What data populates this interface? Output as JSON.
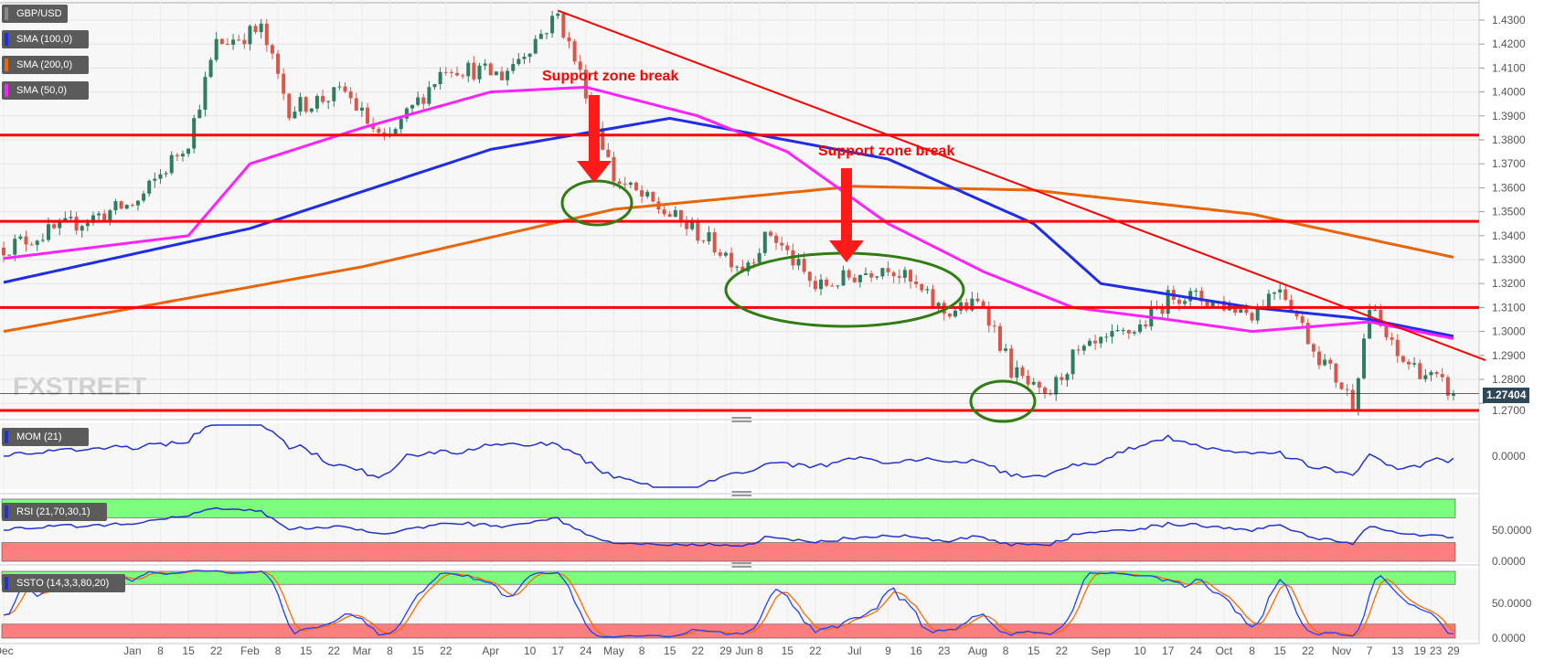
{
  "colors": {
    "up": "#2e7d5e",
    "down": "#d9574a",
    "sma100": "#1f2ee6",
    "sma200": "#e8650a",
    "sma50": "#ff22ff",
    "trend": "#ff0000",
    "support": "#ff0000",
    "ellipse": "#2f7d12",
    "mom": "#2233cc",
    "rsi": "#2233cc",
    "stoch_k": "#2040ff",
    "stoch_d": "#ff6a00",
    "overbought": "#7dfc7d",
    "oversold": "#fc7f7f"
  },
  "legend": {
    "symbol": "GBP/USD",
    "sma100": "SMA (100,0)",
    "sma200": "SMA (200,0)",
    "sma50": "SMA (50,0)",
    "mom": "MOM (21)",
    "rsi": "RSI (21,70,30,1)",
    "ssto": "SSTO (14,3,3,80,20)"
  },
  "watermark": "FXSTREET",
  "last_price": "1.27404",
  "annotations": [
    "Support zone break",
    "Support zone break"
  ],
  "chart_data": {
    "type": "candlestick",
    "title": "",
    "symbol": "GBP/USD",
    "ylim": [
      1.265,
      1.437
    ],
    "yticks": [
      "1.4300",
      "1.4200",
      "1.4100",
      "1.4000",
      "1.3900",
      "1.3800",
      "1.3700",
      "1.3600",
      "1.3500",
      "1.3400",
      "1.3300",
      "1.3200",
      "1.3100",
      "1.3000",
      "1.2900",
      "1.2800",
      "1.2700"
    ],
    "xticks": [
      {
        "label": "Dec",
        "date": "2020-12-01"
      },
      {
        "label": "Jan",
        "date": "2021-01-01"
      },
      {
        "label": "8",
        "date": "2021-01-08"
      },
      {
        "label": "15",
        "date": "2021-01-15"
      },
      {
        "label": "22",
        "date": "2021-01-22"
      },
      {
        "label": "Feb",
        "date": "2021-02-01"
      },
      {
        "label": "8",
        "date": "2021-02-08"
      },
      {
        "label": "15",
        "date": "2021-02-15"
      },
      {
        "label": "22",
        "date": "2021-02-22"
      },
      {
        "label": "Mar",
        "date": "2021-03-01"
      },
      {
        "label": "8",
        "date": "2021-03-08"
      },
      {
        "label": "15",
        "date": "2021-03-15"
      },
      {
        "label": "22",
        "date": "2021-03-22"
      },
      {
        "label": "Apr",
        "date": "2021-04-01"
      },
      {
        "label": "10",
        "date": "2021-04-10"
      },
      {
        "label": "17",
        "date": "2021-04-17"
      },
      {
        "label": "24",
        "date": "2021-04-24"
      },
      {
        "label": "May",
        "date": "2021-05-01"
      },
      {
        "label": "8",
        "date": "2021-05-08"
      },
      {
        "label": "15",
        "date": "2021-05-15"
      },
      {
        "label": "22",
        "date": "2021-05-22"
      },
      {
        "label": "29",
        "date": "2021-05-29"
      },
      {
        "label": "Jun",
        "date": "2021-06-01"
      },
      {
        "label": "8",
        "date": "2021-06-08"
      },
      {
        "label": "15",
        "date": "2021-06-15"
      },
      {
        "label": "22",
        "date": "2021-06-22"
      },
      {
        "label": "Jul",
        "date": "2021-07-01"
      },
      {
        "label": "9",
        "date": "2021-07-09"
      },
      {
        "label": "16",
        "date": "2021-07-16"
      },
      {
        "label": "23",
        "date": "2021-07-23"
      },
      {
        "label": "Aug",
        "date": "2021-08-02"
      },
      {
        "label": "8",
        "date": "2021-08-08"
      },
      {
        "label": "15",
        "date": "2021-08-15"
      },
      {
        "label": "22",
        "date": "2021-08-22"
      },
      {
        "label": "Sep",
        "date": "2021-09-01"
      },
      {
        "label": "10",
        "date": "2021-09-10"
      },
      {
        "label": "17",
        "date": "2021-09-17"
      },
      {
        "label": "24",
        "date": "2021-09-24"
      },
      {
        "label": "Oct",
        "date": "2021-10-01"
      },
      {
        "label": "8",
        "date": "2021-10-08"
      },
      {
        "label": "15",
        "date": "2021-10-15"
      },
      {
        "label": "22",
        "date": "2021-10-22"
      },
      {
        "label": "Nov",
        "date": "2021-11-01"
      },
      {
        "label": "7",
        "date": "2021-11-07"
      },
      {
        "label": "13",
        "date": "2021-11-13"
      },
      {
        "label": "19",
        "date": "2021-11-19"
      },
      {
        "label": "23",
        "date": "2021-11-23"
      },
      {
        "label": "29",
        "date": "2021-11-29"
      }
    ],
    "close_path": [
      {
        "date": "2020-12-01",
        "close": 1.335
      },
      {
        "date": "2021-01-04",
        "close": 1.354
      },
      {
        "date": "2021-01-15",
        "close": 1.38
      },
      {
        "date": "2021-01-22",
        "close": 1.42
      },
      {
        "date": "2021-02-03",
        "close": 1.426
      },
      {
        "date": "2021-02-10",
        "close": 1.393
      },
      {
        "date": "2021-02-24",
        "close": 1.4
      },
      {
        "date": "2021-03-05",
        "close": 1.378
      },
      {
        "date": "2021-03-22",
        "close": 1.411
      },
      {
        "date": "2021-04-05",
        "close": 1.407
      },
      {
        "date": "2021-04-19",
        "close": 1.432
      },
      {
        "date": "2021-04-26",
        "close": 1.401
      },
      {
        "date": "2021-05-03",
        "close": 1.364
      },
      {
        "date": "2021-05-10",
        "close": 1.356
      },
      {
        "date": "2021-05-24",
        "close": 1.341
      },
      {
        "date": "2021-06-03",
        "close": 1.327
      },
      {
        "date": "2021-06-10",
        "close": 1.341
      },
      {
        "date": "2021-06-22",
        "close": 1.318
      },
      {
        "date": "2021-07-09",
        "close": 1.328
      },
      {
        "date": "2021-07-23",
        "close": 1.308
      },
      {
        "date": "2021-08-03",
        "close": 1.312
      },
      {
        "date": "2021-08-10",
        "close": 1.284
      },
      {
        "date": "2021-08-18",
        "close": 1.271
      },
      {
        "date": "2021-08-25",
        "close": 1.289
      },
      {
        "date": "2021-09-10",
        "close": 1.302
      },
      {
        "date": "2021-09-20",
        "close": 1.316
      },
      {
        "date": "2021-09-30",
        "close": 1.312
      },
      {
        "date": "2021-10-08",
        "close": 1.308
      },
      {
        "date": "2021-10-15",
        "close": 1.32
      },
      {
        "date": "2021-10-25",
        "close": 1.293
      },
      {
        "date": "2021-11-03",
        "close": 1.271
      },
      {
        "date": "2021-11-08",
        "close": 1.31
      },
      {
        "date": "2021-11-13",
        "close": 1.289
      },
      {
        "date": "2021-11-19",
        "close": 1.284
      },
      {
        "date": "2021-11-29",
        "close": 1.274
      }
    ],
    "sma100": [
      {
        "date": "2020-12-01",
        "value": 1.3205
      },
      {
        "date": "2021-02-01",
        "value": 1.343
      },
      {
        "date": "2021-04-01",
        "value": 1.376
      },
      {
        "date": "2021-05-15",
        "value": 1.389
      },
      {
        "date": "2021-07-09",
        "value": 1.372
      },
      {
        "date": "2021-08-15",
        "value": 1.345
      },
      {
        "date": "2021-09-01",
        "value": 1.32
      },
      {
        "date": "2021-10-08",
        "value": 1.31
      },
      {
        "date": "2021-11-07",
        "value": 1.305
      },
      {
        "date": "2021-11-29",
        "value": 1.298
      }
    ],
    "sma200": [
      {
        "date": "2020-12-01",
        "value": 1.3
      },
      {
        "date": "2021-03-01",
        "value": 1.327
      },
      {
        "date": "2021-05-01",
        "value": 1.351
      },
      {
        "date": "2021-07-01",
        "value": 1.3606
      },
      {
        "date": "2021-08-15",
        "value": 1.359
      },
      {
        "date": "2021-10-08",
        "value": 1.349
      },
      {
        "date": "2021-11-29",
        "value": 1.331
      }
    ],
    "sma50": [
      {
        "date": "2020-12-01",
        "value": 1.3305
      },
      {
        "date": "2021-01-15",
        "value": 1.34
      },
      {
        "date": "2021-02-01",
        "value": 1.37
      },
      {
        "date": "2021-03-01",
        "value": 1.385
      },
      {
        "date": "2021-04-01",
        "value": 1.4
      },
      {
        "date": "2021-04-24",
        "value": 1.402
      },
      {
        "date": "2021-05-22",
        "value": 1.39
      },
      {
        "date": "2021-06-15",
        "value": 1.375
      },
      {
        "date": "2021-07-09",
        "value": 1.345
      },
      {
        "date": "2021-08-03",
        "value": 1.325
      },
      {
        "date": "2021-08-25",
        "value": 1.31
      },
      {
        "date": "2021-09-17",
        "value": 1.305
      },
      {
        "date": "2021-10-08",
        "value": 1.3
      },
      {
        "date": "2021-11-07",
        "value": 1.304
      },
      {
        "date": "2021-11-29",
        "value": 1.297
      }
    ],
    "support_levels": [
      1.382,
      1.346,
      1.31,
      1.267
    ],
    "trendline": [
      {
        "date": "2021-04-19",
        "value": 1.434
      },
      {
        "date": "2021-12-07",
        "value": 1.288
      }
    ],
    "indicators": {
      "mom": {
        "period": 21,
        "yticks": [
          "0.0000"
        ]
      },
      "rsi": {
        "period": 21,
        "overbought": 70,
        "oversold": 30,
        "yticks": [
          "50.0000",
          "0.0000"
        ]
      },
      "ssto": {
        "k": 14,
        "smooth": 3,
        "d": 3,
        "overbought": 80,
        "oversold": 20,
        "yticks": [
          "50.0000",
          "0.0000"
        ]
      }
    }
  }
}
